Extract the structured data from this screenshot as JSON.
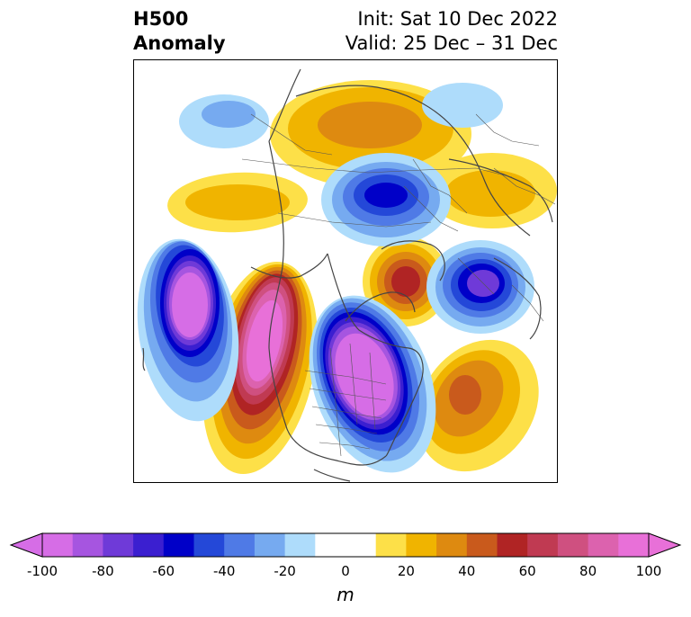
{
  "header": {
    "title_line1": "H500",
    "title_line2": "Anomaly",
    "init_text": "Init: Sat 10 Dec 2022",
    "valid_text": "Valid: 25 Dec – 31 Dec"
  },
  "colorbar": {
    "unit": "m",
    "ticks": [
      "-100",
      "-80",
      "-60",
      "-40",
      "-20",
      "0",
      "20",
      "40",
      "60",
      "80",
      "100"
    ],
    "bins": [
      {
        "range": "-100 to -90",
        "color": "#d66de6"
      },
      {
        "range": "-90 to -80",
        "color": "#a655e0"
      },
      {
        "range": "-80 to -70",
        "color": "#6f3ad8"
      },
      {
        "range": "-70 to -60",
        "color": "#3b1fd0"
      },
      {
        "range": "-60 to -50",
        "color": "#0000c8"
      },
      {
        "range": "-50 to -40",
        "color": "#2448d8"
      },
      {
        "range": "-40 to -30",
        "color": "#4f7ae6"
      },
      {
        "range": "-30 to -20",
        "color": "#76aaf0"
      },
      {
        "range": "-20 to -10",
        "color": "#aedcfb"
      },
      {
        "range": "-10 to 0",
        "color": "#ffffff"
      },
      {
        "range": "0 to 10",
        "color": "#ffffff"
      },
      {
        "range": "10 to 20",
        "color": "#fde048"
      },
      {
        "range": "20 to 30",
        "color": "#f0b400"
      },
      {
        "range": "30 to 40",
        "color": "#de8a10"
      },
      {
        "range": "40 to 50",
        "color": "#c95a1c"
      },
      {
        "range": "50 to 60",
        "color": "#b02424"
      },
      {
        "range": "60 to 70",
        "color": "#c03a52"
      },
      {
        "range": "70 to 80",
        "color": "#cf5080"
      },
      {
        "range": "80 to 90",
        "color": "#dc62ae"
      },
      {
        "range": "90 to 100",
        "color": "#e870d8"
      }
    ],
    "under_color": "#d66de6",
    "over_color": "#e870d8"
  },
  "map": {
    "projection": "north polar stereographic",
    "anomaly_centers": [
      {
        "region": "North Pacific (south of Aleutians)",
        "sign": "negative",
        "magnitude": 100
      },
      {
        "region": "West coast North America / Alaska ridge",
        "sign": "positive",
        "magnitude": 100
      },
      {
        "region": "Central North America",
        "sign": "negative",
        "magnitude": 100
      },
      {
        "region": "Arctic / Siberia",
        "sign": "negative",
        "magnitude": 60
      },
      {
        "region": "Greenland",
        "sign": "positive",
        "magnitude": 60
      },
      {
        "region": "North Atlantic / Europe",
        "sign": "negative",
        "magnitude": 80
      },
      {
        "region": "Subtropical Atlantic",
        "sign": "positive",
        "magnitude": 50
      },
      {
        "region": "East Asia",
        "sign": "positive",
        "magnitude": 40
      },
      {
        "region": "Northern Eurasia",
        "sign": "positive",
        "magnitude": 40
      },
      {
        "region": "Western Pacific",
        "sign": "positive",
        "magnitude": 20
      }
    ]
  }
}
